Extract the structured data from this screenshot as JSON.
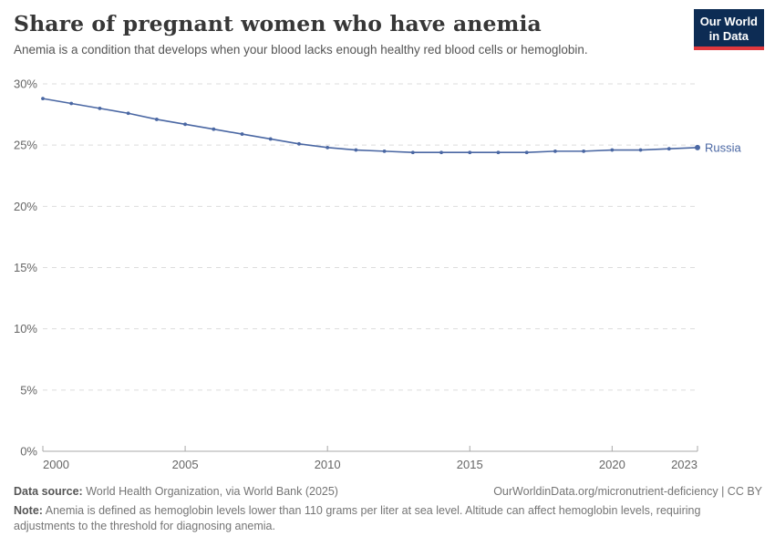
{
  "header": {
    "title": "Share of pregnant women who have anemia",
    "subtitle": "Anemia is a condition that develops when your blood lacks enough healthy red blood cells or hemoglobin."
  },
  "logo": {
    "line1": "Our World",
    "line2": "in Data"
  },
  "footer": {
    "data_source_label": "Data source:",
    "data_source_value": " World Health Organization, via World Bank (2025)",
    "url_license": "OurWorldinData.org/micronutrient-deficiency | CC BY",
    "note_label": "Note:",
    "note_value": " Anemia is defined as hemoglobin levels lower than 110 grams per liter at sea level. Altitude can affect hemoglobin levels, requiring adjustments to the threshold for diagnosing anemia."
  },
  "colors": {
    "line": "#4a67a3",
    "logo_bg": "#0d2c54",
    "logo_red": "#e0383e",
    "grid": "#dddddd",
    "axis": "#a8a8a8",
    "tick_label": "#666666"
  },
  "chart_data": {
    "type": "line",
    "title": "Share of pregnant women who have anemia",
    "unit": "%",
    "grid": "horizontal-dashed",
    "legend": "end-of-line-label",
    "xlim": [
      2000,
      2023
    ],
    "ylim": [
      0,
      30
    ],
    "x": [
      2000,
      2001,
      2002,
      2003,
      2004,
      2005,
      2006,
      2007,
      2008,
      2009,
      2010,
      2011,
      2012,
      2013,
      2014,
      2015,
      2016,
      2017,
      2018,
      2019,
      2020,
      2021,
      2022,
      2023
    ],
    "series": [
      {
        "name": "Russia",
        "color": "#4a67a3",
        "values": [
          28.8,
          28.4,
          28.0,
          27.6,
          27.1,
          26.7,
          26.3,
          25.9,
          25.5,
          25.1,
          24.8,
          24.6,
          24.5,
          24.4,
          24.4,
          24.4,
          24.4,
          24.4,
          24.5,
          24.5,
          24.6,
          24.6,
          24.7,
          24.8
        ]
      }
    ],
    "x_ticks": [
      2000,
      2005,
      2010,
      2015,
      2020,
      2023
    ],
    "x_tick_labels": [
      "2000",
      "2005",
      "2010",
      "2015",
      "2020",
      "2023"
    ],
    "y_ticks": [
      0,
      5,
      10,
      15,
      20,
      25,
      30
    ],
    "y_tick_labels": [
      "0%",
      "5%",
      "10%",
      "15%",
      "20%",
      "25%",
      "30%"
    ]
  }
}
